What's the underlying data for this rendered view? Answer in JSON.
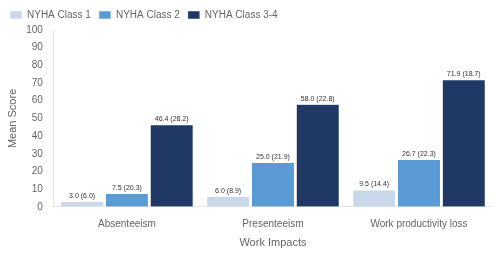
{
  "chart_data": {
    "type": "bar",
    "categories": [
      "Absenteeism",
      "Presenteeism",
      "Work productivity loss"
    ],
    "series": [
      {
        "name": "NYHA Class 1",
        "color": "#c8d8e8",
        "values": [
          3.0,
          6.0,
          9.5
        ],
        "value_labels": [
          "3.0 (6.0)",
          "6.0 (8.9)",
          "9.5 (14.4)"
        ]
      },
      {
        "name": "NYHA Class 2",
        "color": "#5b9bd5",
        "values": [
          7.5,
          25.0,
          26.7
        ],
        "value_labels": [
          "7.5 (20.3)",
          "25.0 (21.9)",
          "26.7 (22.3)"
        ]
      },
      {
        "name": "NYHA Class 3-4",
        "color": "#1f3864",
        "values": [
          46.4,
          58.0,
          71.9
        ],
        "value_labels": [
          "46.4 (28.2)",
          "58.0 (22.8)",
          "71.9 (18.7)"
        ]
      }
    ],
    "xlabel": "Work Impacts",
    "ylabel": "Mean Score",
    "ylim": [
      0,
      100
    ],
    "yticks": [
      0,
      10,
      20,
      30,
      40,
      50,
      60,
      70,
      80,
      90,
      100
    ],
    "data_labels": true,
    "legend": "upper left",
    "grid": false
  }
}
